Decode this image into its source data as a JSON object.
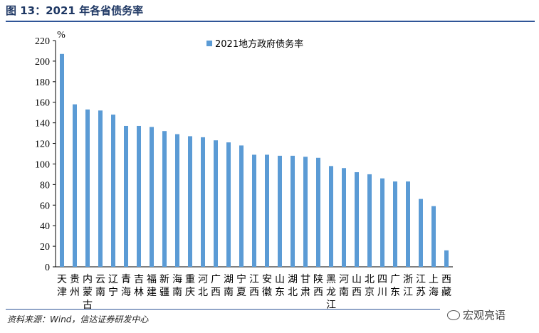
{
  "figure": {
    "title": "图 13：2021 年各省债务率",
    "source": "资料来源：Wind，信达证券研发中心",
    "watermark": "宏观亮语"
  },
  "chart_data": {
    "type": "bar",
    "unit_label": "%",
    "title": "",
    "xlabel": "",
    "ylabel": "%",
    "ylim": [
      0,
      220
    ],
    "yticks": [
      0,
      20,
      40,
      60,
      80,
      100,
      120,
      140,
      160,
      180,
      200,
      220
    ],
    "grid": false,
    "legend": {
      "position": "top-center",
      "color": "#5b9bd5"
    },
    "categories": [
      "天津",
      "贵州",
      "内蒙古",
      "云南",
      "辽宁",
      "青海",
      "吉林",
      "福建",
      "新疆",
      "海南",
      "重庆",
      "河北",
      "广西",
      "湖南",
      "宁夏",
      "江西",
      "安徽",
      "山东",
      "湖北",
      "甘肃",
      "陕西",
      "黑龙江",
      "河南",
      "山西",
      "北京",
      "四川",
      "广东",
      "浙江",
      "江苏",
      "上海",
      "西藏"
    ],
    "series": [
      {
        "name": "2021地方政府债务率",
        "color": "#5b9bd5",
        "values": [
          207,
          158,
          153,
          152,
          148,
          137,
          137,
          136,
          132,
          129,
          127,
          126,
          123,
          121,
          118,
          109,
          109,
          108,
          108,
          107,
          106,
          98,
          96,
          92,
          90,
          86,
          83,
          83,
          66,
          59,
          16
        ]
      }
    ]
  }
}
